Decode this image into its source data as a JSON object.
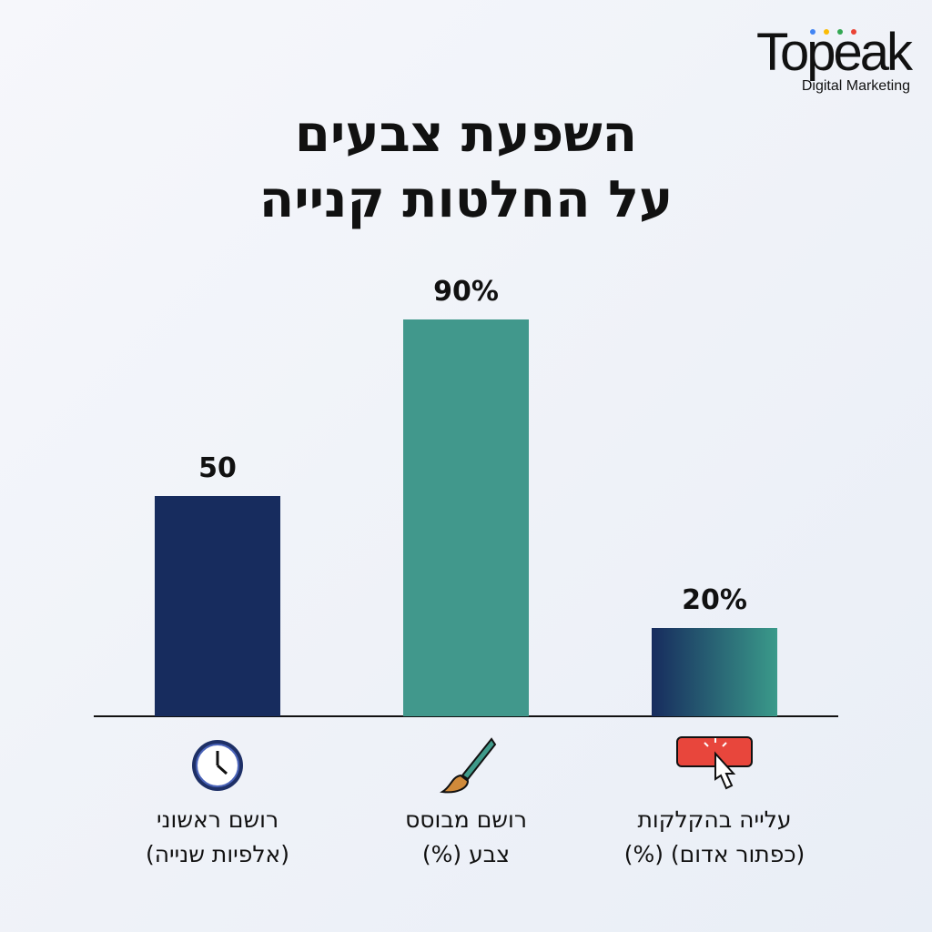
{
  "logo": {
    "name": "Topeak",
    "tagline": "Digital Marketing"
  },
  "chart_data": {
    "type": "bar",
    "title": [
      "השפעת צבעים",
      "על החלטות קנייה"
    ],
    "categories": [
      "רושם ראשוני\n(אלפיות שנייה)",
      "רושם מבוסס\nצבע (%)",
      "עלייה בהקלקות\n(כפתור אדום) (%)"
    ],
    "values": [
      50,
      90,
      20
    ],
    "value_labels": [
      "50",
      "90%",
      "20%"
    ],
    "colors": [
      "#172c5e",
      "#41988c",
      [
        "#172c5e",
        "#3a9a8a"
      ]
    ]
  }
}
